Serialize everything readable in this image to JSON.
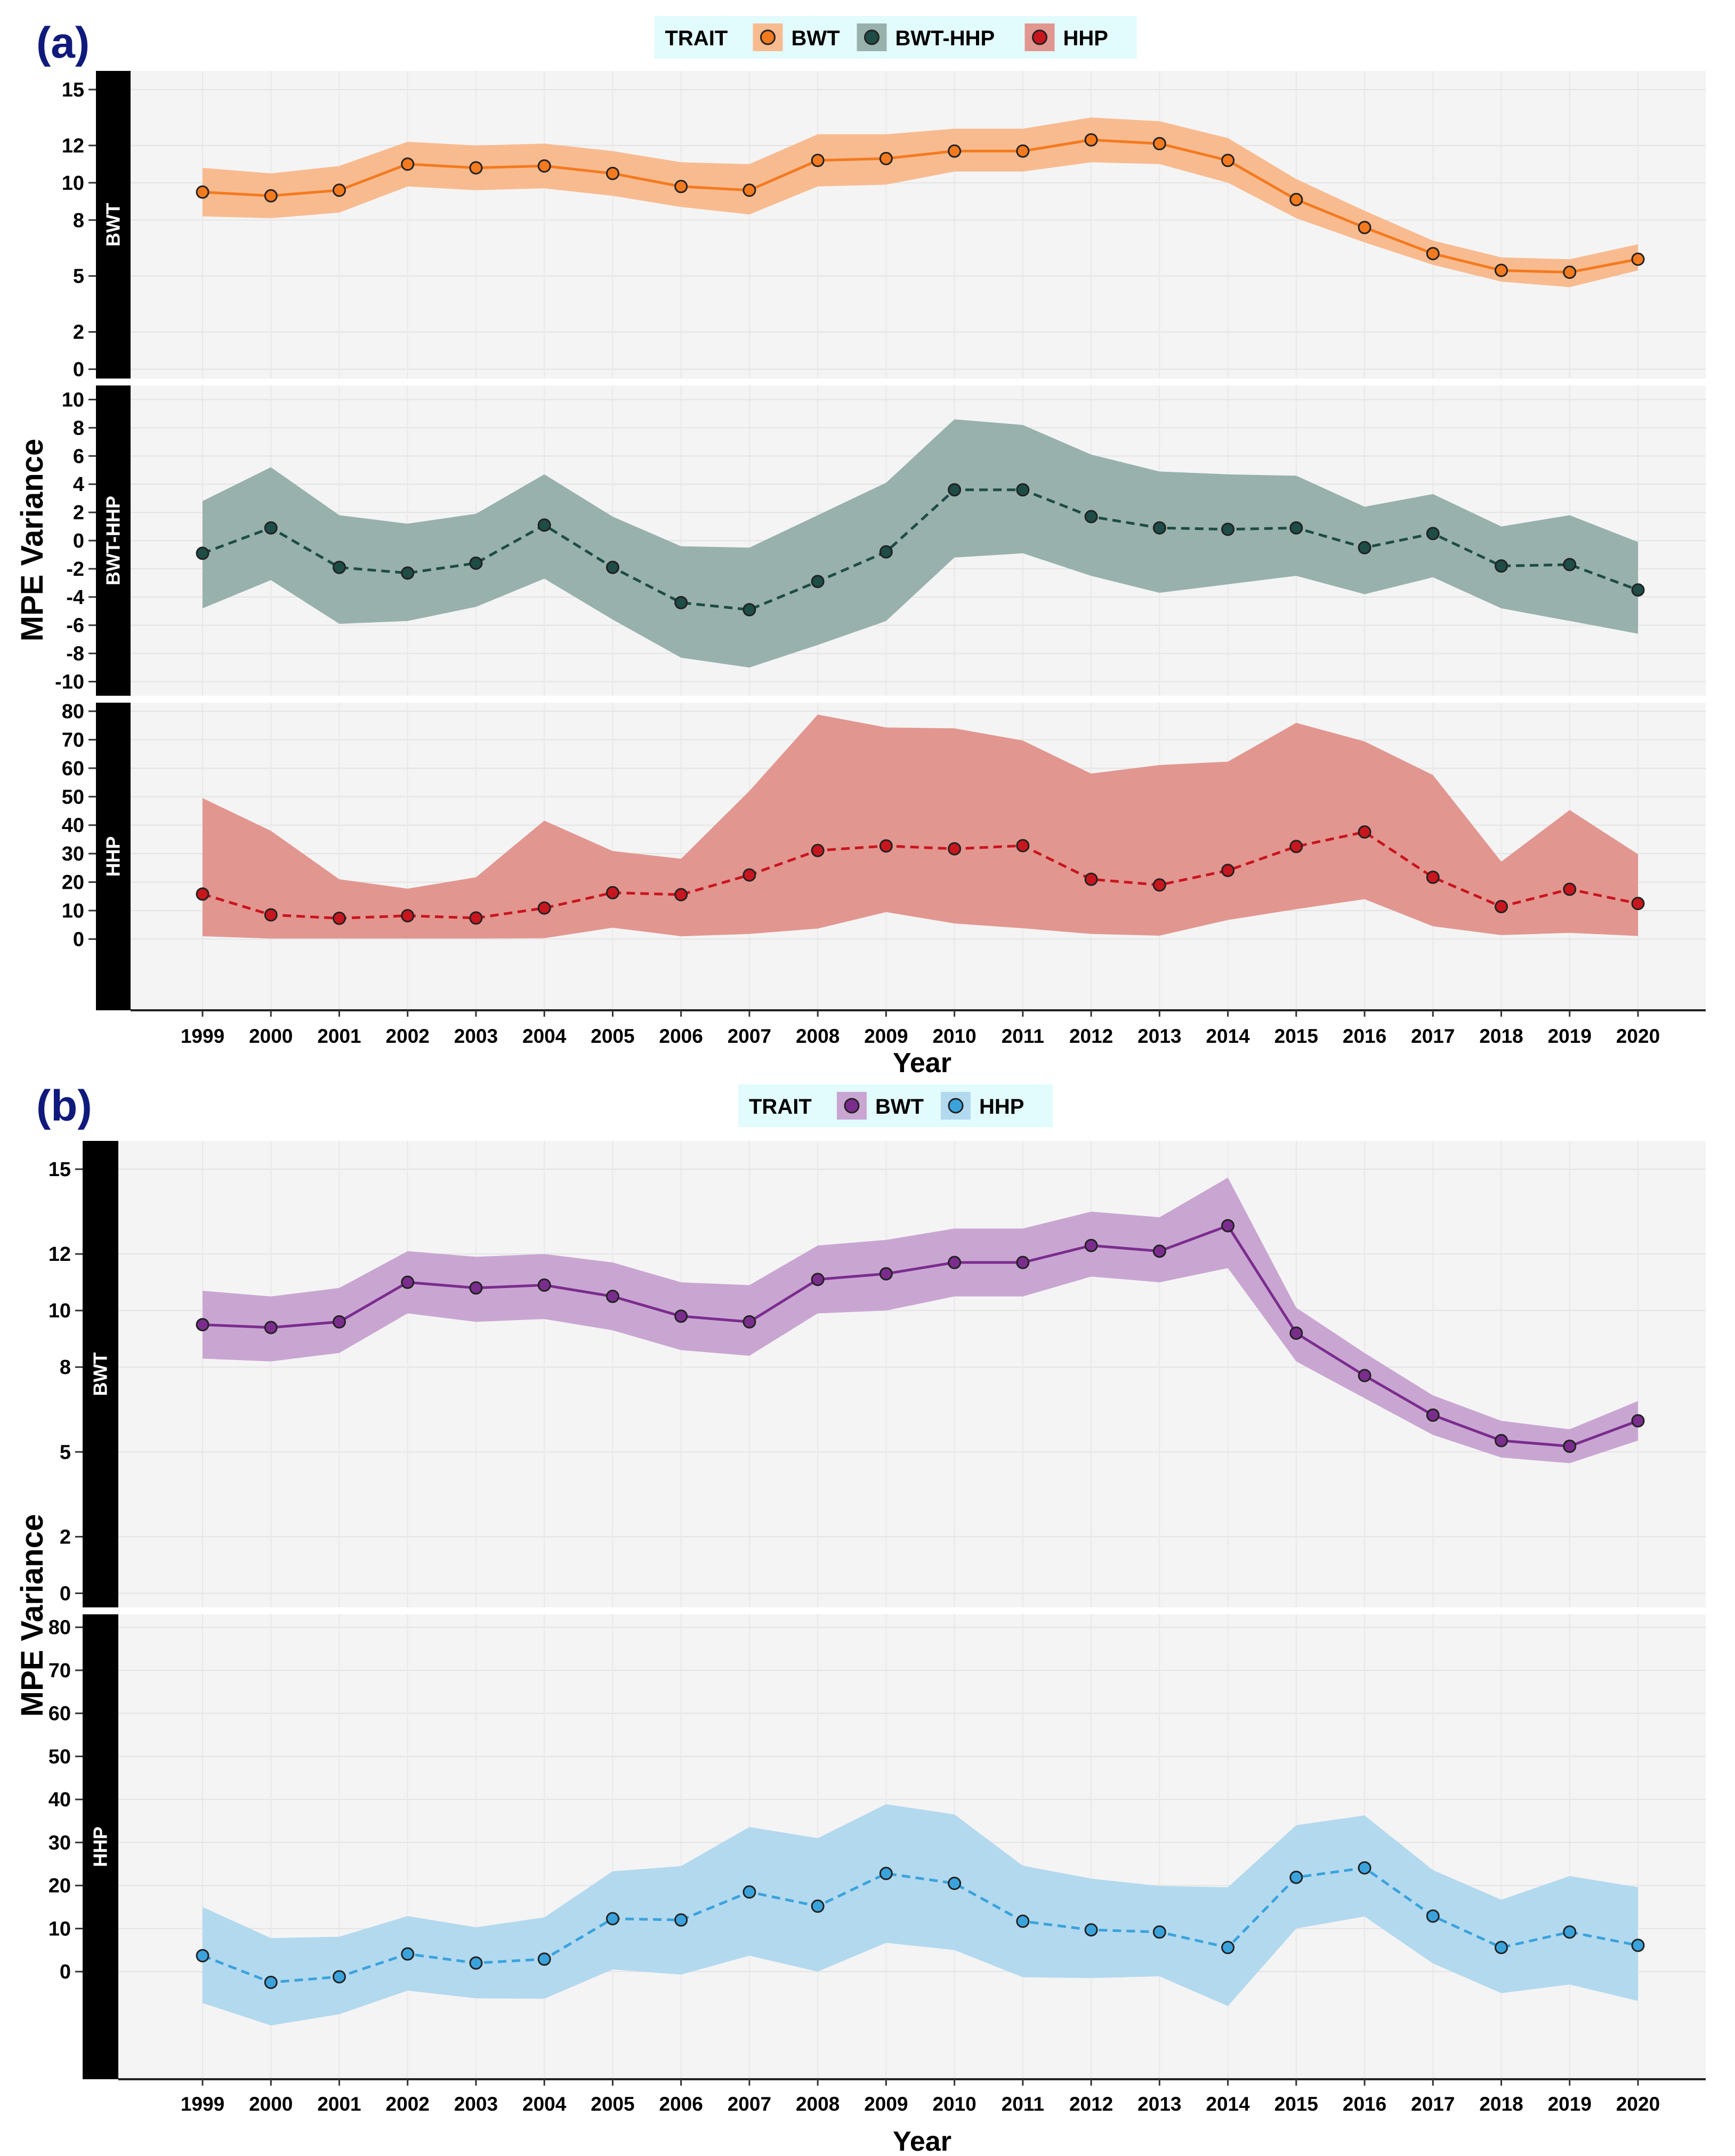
{
  "figure": {
    "panel_a_label": "(a)",
    "panel_b_label": "(b)",
    "ylabel": "MPE Variance",
    "xlabel": "Year"
  },
  "years": [
    "1999",
    "2000",
    "2001",
    "2002",
    "2003",
    "2004",
    "2005",
    "2006",
    "2007",
    "2008",
    "2009",
    "2010",
    "2011",
    "2012",
    "2013",
    "2014",
    "2015",
    "2016",
    "2017",
    "2018",
    "2019",
    "2020"
  ],
  "chart_data": [
    {
      "type": "line",
      "panel": "(a)",
      "legend": {
        "title": "TRAIT",
        "placement": "top-center",
        "entries": [
          "BWT",
          "BWT-HHP",
          "HHP"
        ]
      },
      "xlabel": "Year",
      "ylabel": "MPE Variance",
      "grid": true,
      "facets": [
        {
          "strip": "BWT",
          "series_index": 0,
          "ylim": [
            -0.5,
            16
          ],
          "yticks": [
            0,
            2,
            5,
            8,
            10,
            12,
            15
          ]
        },
        {
          "strip": "BWT-HHP",
          "series_index": 1,
          "ylim": [
            -11,
            11
          ],
          "yticks": [
            -10,
            -8,
            -6,
            -4,
            -2,
            0,
            2,
            4,
            6,
            8,
            10
          ]
        },
        {
          "strip": "HHP",
          "series_index": 2,
          "ylim": [
            -25,
            83
          ],
          "yticks": [
            0,
            10,
            20,
            30,
            40,
            50,
            60,
            70,
            80
          ]
        }
      ],
      "series": [
        {
          "name": "BWT",
          "color": "#f47a1f",
          "fill": "#f8bb90",
          "line": "solid",
          "values": [
            9.5,
            9.3,
            9.6,
            11.0,
            10.8,
            10.9,
            10.5,
            9.8,
            9.6,
            11.2,
            11.3,
            11.7,
            11.7,
            12.3,
            12.1,
            11.2,
            9.1,
            7.6,
            6.2,
            5.3,
            5.2,
            5.9
          ],
          "lower": [
            8.2,
            8.1,
            8.4,
            9.8,
            9.6,
            9.7,
            9.3,
            8.7,
            8.3,
            9.8,
            9.9,
            10.6,
            10.6,
            11.1,
            11.0,
            10.0,
            8.1,
            6.8,
            5.6,
            4.7,
            4.4,
            5.3
          ],
          "upper": [
            10.8,
            10.5,
            10.9,
            12.2,
            12.0,
            12.1,
            11.7,
            11.1,
            11.0,
            12.6,
            12.6,
            12.9,
            12.9,
            13.5,
            13.3,
            12.4,
            10.2,
            8.5,
            6.9,
            6.0,
            5.9,
            6.7
          ]
        },
        {
          "name": "BWT-HHP",
          "color": "#1e4c46",
          "fill": "#98b1ac",
          "line": "dashed",
          "values": [
            -0.9,
            0.9,
            -1.9,
            -2.3,
            -1.6,
            1.1,
            -1.9,
            -4.4,
            -4.9,
            -2.9,
            -0.8,
            3.6,
            3.6,
            1.7,
            0.9,
            0.8,
            0.9,
            -0.5,
            0.5,
            -1.8,
            -1.7,
            -3.5
          ],
          "lower": [
            -4.8,
            -2.8,
            -5.9,
            -5.7,
            -4.7,
            -2.7,
            -5.6,
            -8.3,
            -9.0,
            -7.4,
            -5.7,
            -1.2,
            -0.9,
            -2.5,
            -3.7,
            -3.1,
            -2.5,
            -3.8,
            -2.6,
            -4.8,
            -5.7,
            -6.6
          ],
          "upper": [
            2.8,
            5.2,
            1.8,
            1.2,
            1.9,
            4.7,
            1.7,
            -0.4,
            -0.5,
            1.8,
            4.1,
            8.6,
            8.2,
            6.1,
            4.9,
            4.7,
            4.6,
            2.4,
            3.3,
            1.0,
            1.8,
            -0.1
          ]
        },
        {
          "name": "HHP",
          "color": "#c8161e",
          "fill": "#e29690",
          "line": "dashed",
          "values": [
            15.8,
            8.5,
            7.3,
            8.2,
            7.4,
            10.9,
            16.3,
            15.6,
            22.5,
            31.1,
            32.7,
            31.7,
            32.8,
            21.0,
            19.0,
            24.1,
            32.5,
            37.6,
            21.7,
            11.4,
            17.5,
            12.5
          ],
          "lower": [
            1.0,
            0.2,
            0.2,
            0.2,
            0.2,
            0.3,
            4.0,
            1.0,
            1.8,
            3.7,
            9.5,
            5.5,
            3.8,
            1.8,
            1.2,
            6.7,
            10.5,
            14.0,
            4.5,
            1.4,
            2.2,
            1.1
          ],
          "upper": [
            49.5,
            38.0,
            21.0,
            17.7,
            21.7,
            41.6,
            30.9,
            28.2,
            52.0,
            78.8,
            74.3,
            74.0,
            69.7,
            58.1,
            61.1,
            62.3,
            75.9,
            69.4,
            57.6,
            27.2,
            45.3,
            29.8
          ]
        }
      ]
    },
    {
      "type": "line",
      "panel": "(b)",
      "legend": {
        "title": "TRAIT",
        "placement": "top-center",
        "entries": [
          "BWT",
          "HHP"
        ]
      },
      "xlabel": "Year",
      "ylabel": "MPE Variance",
      "grid": true,
      "facets": [
        {
          "strip": "BWT",
          "series_index": 0,
          "ylim": [
            -0.5,
            16
          ],
          "yticks": [
            0,
            2,
            5,
            8,
            10,
            12,
            15
          ]
        },
        {
          "strip": "HHP",
          "series_index": 1,
          "ylim": [
            -25,
            83
          ],
          "yticks": [
            0,
            10,
            20,
            30,
            40,
            50,
            60,
            70,
            80
          ]
        }
      ],
      "series": [
        {
          "name": "BWT",
          "color": "#7b2d8e",
          "fill": "#c9a6d2",
          "line": "solid",
          "values": [
            9.5,
            9.4,
            9.6,
            11.0,
            10.8,
            10.9,
            10.5,
            9.8,
            9.6,
            11.1,
            11.3,
            11.7,
            11.7,
            12.3,
            12.1,
            13.0,
            9.2,
            7.7,
            6.3,
            5.4,
            5.2,
            6.1
          ],
          "lower": [
            8.3,
            8.2,
            8.5,
            9.9,
            9.6,
            9.7,
            9.3,
            8.6,
            8.4,
            9.9,
            10.0,
            10.5,
            10.5,
            11.2,
            11.0,
            11.5,
            8.2,
            6.9,
            5.6,
            4.8,
            4.6,
            5.4
          ],
          "upper": [
            10.7,
            10.5,
            10.8,
            12.1,
            11.9,
            12.0,
            11.7,
            11.0,
            10.9,
            12.3,
            12.5,
            12.9,
            12.9,
            13.5,
            13.3,
            14.7,
            10.1,
            8.5,
            7.0,
            6.1,
            5.8,
            6.8
          ]
        },
        {
          "name": "HHP",
          "color": "#3ba3dc",
          "fill": "#b3d9ef",
          "line": "dashed",
          "values": [
            3.7,
            -2.5,
            -1.2,
            4.1,
            2.0,
            2.9,
            12.3,
            12.0,
            18.5,
            15.2,
            22.8,
            20.5,
            11.7,
            9.7,
            9.2,
            5.6,
            21.9,
            24.1,
            12.9,
            5.6,
            9.2,
            6.1
          ],
          "lower": [
            -7.3,
            -12.5,
            -9.9,
            -4.4,
            -6.2,
            -6.3,
            0.5,
            -0.7,
            3.7,
            0.0,
            6.7,
            5.0,
            -1.3,
            -1.5,
            -1.1,
            -8.0,
            10.0,
            12.8,
            1.9,
            -5.0,
            -3.0,
            -6.8
          ],
          "upper": [
            15.0,
            7.8,
            8.1,
            12.9,
            10.3,
            12.6,
            23.3,
            24.5,
            33.6,
            31.0,
            38.9,
            36.5,
            24.6,
            21.6,
            19.9,
            19.6,
            34.0,
            36.3,
            23.6,
            16.7,
            22.2,
            19.6
          ]
        }
      ]
    }
  ]
}
